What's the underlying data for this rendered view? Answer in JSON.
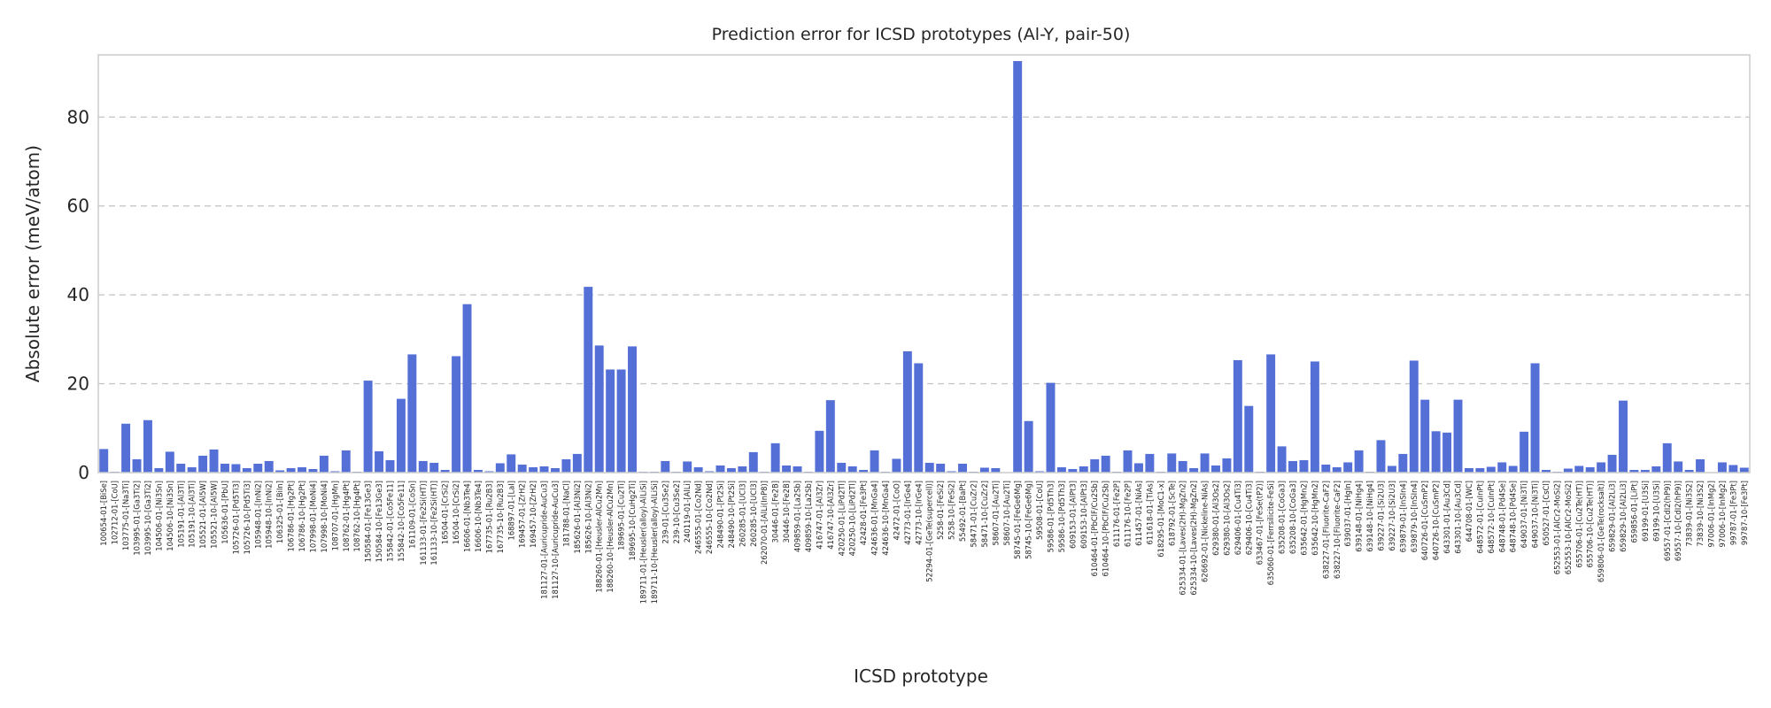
{
  "chart_data": {
    "type": "bar",
    "title": "Prediction error for ICSD prototypes (Al-Y, pair-50)",
    "xlabel": "ICSD prototype",
    "ylabel": "Absolute error (meV/atom)",
    "ylim": [
      0,
      94
    ],
    "yticks": [
      0,
      20,
      40,
      60,
      80
    ],
    "grid": "y, dashed",
    "bar_color": "#5470d6",
    "categories": [
      "100654-01-[BiSe]",
      "102712-01-[CoU]",
      "103775-01-[Na3Ti]",
      "103995-01-[Ga3Ti2]",
      "103995-10-[Ga3Ti2]",
      "104506-01-[Ni3Sn]",
      "104506-10-[Ni3Sn]",
      "105191-01-[Al3Ti]",
      "105191-10-[Al3Ti]",
      "105521-01-[Al5W]",
      "105521-10-[Al5W]",
      "105636-01-[PbU]",
      "105726-01-[Pd5Ti3]",
      "105726-10-[Pd5Ti3]",
      "105948-01-[InNi2]",
      "105948-10-[InNi2]",
      "106325-01-[BiIn]",
      "106786-01-[Hg2Pt]",
      "106786-10-[Hg2Pt]",
      "107998-01-[MoNi4]",
      "107998-10-[MoNi4]",
      "108707-01-[HgMn]",
      "108762-01-[Hg4Pt]",
      "108762-10-[Hg4Pt]",
      "150584-01-[Fe13Ge3]",
      "150584-10-[Fe13Ge3]",
      "155842-01-[Co5Fe11]",
      "155842-10-[Co5Fe11]",
      "161109-01-[CoSn]",
      "161133-01-[Fe2Si(HT)]",
      "161133-10-[Fe2Si(HT)]",
      "16504-01-[CrSi2]",
      "16504-10-[CrSi2]",
      "16606-01-[Nb3Te4]",
      "16606-10-[Nb3Te4]",
      "167735-01-[Ru2B3]",
      "167735-10-[Ru2B3]",
      "168897-01-[LaI]",
      "169457-01-[ZrH2]",
      "169457-10-[ZrH2]",
      "181127-01-[Auricupride-AuCu3]",
      "181127-10-[Auricupride-AuCu3]",
      "181788-01-[NaCl]",
      "185626-01-[Al3Ni2]",
      "185626-10-[Al3Ni2]",
      "188260-01-[Heusler-AlCu2Mn]",
      "188260-10-[Heusler-AlCu2Mn]",
      "189695-01-[Cu2Ti]",
      "189695-10-[CuHg2Ti]",
      "189711-01-[Heusler(alloy)-AlLiSi]",
      "189711-10-[Heusler(alloy)-AlLiSi]",
      "239-01-[Cu3Se2]",
      "239-10-[Cu3Se2]",
      "240119-01-[AlLi]",
      "246555-01-[Co2Nd]",
      "246555-10-[Co2Nd]",
      "248490-01-[Pt2Si]",
      "248490-10-[Pt2Si]",
      "260285-01-[UCl3]",
      "260285-10-[UCl3]",
      "262070-01-[AlLi(InP8)]",
      "30446-01-[Fe2B]",
      "30446-10-[Fe2B]",
      "409859-01-[La2Sb]",
      "409859-10-[La2Sb]",
      "416747-01-[Al3Zr]",
      "416747-10-[Al3Zr]",
      "420250-01-[LiPd2Tl]",
      "420250-10-[LiPd2Tl]",
      "42428-01-[Fe3Pt]",
      "424636-01-[MnGa4]",
      "424636-10-[MnGa4]",
      "42472-01-[CoO]",
      "42773-01-[IrGe4]",
      "42773-10-[IrGe4]",
      "52294-01-[GeTe(supercell)]",
      "5258-01-[FeSi2]",
      "5258-10-[FeSi2]",
      "55492-01-[BaPt]",
      "58471-01-[CuZr2]",
      "58471-10-[CuZr2]",
      "58607-01-[Au2Ti]",
      "58607-10-[Au2Ti]",
      "58745-01-[FeGe6Mg]",
      "58745-10-[FeGe6Mg]",
      "59508-01-[CoU]",
      "59586-01-[Pd5Th3]",
      "59586-10-[Pd5Th3]",
      "609153-01-[AlPt3]",
      "609153-10-[AlPt3]",
      "610464-01-[PbClF/Cu2Sb]",
      "610464-10-[PbClF/Cu2Sb]",
      "611176-01-[Fe2P]",
      "611176-10-[Fe2P]",
      "611457-01-[NiAs]",
      "611618-01-[TiAs]",
      "618295-01-[MoC1-x]",
      "618792-01-[ScTe]",
      "625334-01-[Laves(2H)-MgZn2]",
      "625334-10-[Laves(2H)-MgZn2]",
      "626692-01-[Nickeline-NiAs]",
      "629380-01-[Al3Os2]",
      "629380-10-[Al3Os2]",
      "629406-01-[Cu4Ti3]",
      "629406-10-[Cu4Ti3]",
      "633467-01-[FeSe(tP2)]",
      "635060-01-[Ferrsilicite-FeSi]",
      "635208-01-[CoGa3]",
      "635208-10-[CoGa3]",
      "635642-01-[HgMn2]",
      "635642-10-[HgMn2]",
      "638227-01-[Fluorite-CaF2]",
      "638227-10-[Fluorite-CaF2]",
      "639037-01-[HgIn]",
      "639148-01-[NiHg4]",
      "639148-10-[NiHg4]",
      "639227-01-[Si2U3]",
      "639227-10-[Si2U3]",
      "639879-01-[InSIn4]",
      "639879-10-[InSIn4]",
      "640726-01-[CuSmP2]",
      "640726-10-[CuSmP2]",
      "643301-01-[Au3Cd]",
      "643301-10-[Au3Cd]",
      "644708-01-[WC]",
      "648572-01-[CuInPt]",
      "648572-10-[CuInPt]",
      "648748-01-[Pd4Se]",
      "648748-10-[Pd4Se]",
      "649037-01-[Ni3Ti]",
      "649037-10-[Ni3Ti]",
      "650527-01-[CsCl]",
      "652553-01-[AlCr2-MoSi2]",
      "652553-10-[AlCr2-MoSi2]",
      "655706-01-[Cu2Te(HT)]",
      "655706-10-[Cu2Te(HT)]",
      "659806-01-[GeTe(rocksalt)]",
      "659829-01-[Al2Li3]",
      "659829-10-[Al2Li3]",
      "659856-01-[LiPt]",
      "69199-01-[U3Si]",
      "69199-10-[U3Si]",
      "69557-01-[CdI2(hP9)]",
      "69557-10-[CdI2(hP9)]",
      "73839-01-[Ni3S2]",
      "73839-10-[Ni3S2]",
      "97006-01-[InMg2]",
      "97006-10-[InMg2]",
      "99787-01-[Fe3Pt]",
      "99787-10-[Fe3Pt]"
    ],
    "values": [
      5.3,
      0.2,
      11.0,
      3.0,
      11.8,
      1.0,
      4.7,
      2.0,
      1.2,
      3.8,
      5.2,
      2.0,
      1.9,
      1.0,
      2.0,
      2.6,
      0.5,
      1.0,
      1.2,
      0.8,
      3.8,
      0.3,
      5.0,
      0.2,
      20.7,
      4.8,
      2.8,
      16.6,
      26.6,
      2.6,
      2.2,
      0.6,
      26.2,
      37.9,
      0.6,
      0.3,
      2.1,
      4.1,
      1.8,
      1.2,
      1.4,
      1.0,
      3.0,
      4.2,
      41.8,
      28.6,
      23.2,
      23.2,
      28.4,
      0.2,
      0.2,
      2.6,
      0.2,
      2.5,
      1.2,
      0.3,
      1.6,
      1.0,
      1.4,
      4.6,
      0.2,
      6.6,
      1.6,
      1.4,
      0.2,
      9.4,
      16.3,
      2.2,
      1.4,
      0.6,
      5.0,
      0.2,
      3.1,
      27.3,
      24.6,
      2.2,
      2.0,
      0.3,
      2.0,
      0.2,
      1.1,
      1.0,
      0.1,
      92.6,
      11.6,
      0.3,
      20.2,
      1.2,
      0.8,
      1.4,
      3.0,
      3.8,
      0.2,
      5.0,
      2.1,
      4.2,
      0.2,
      4.3,
      2.6,
      1.0,
      4.3,
      1.6,
      3.2,
      25.3,
      15.0,
      0.2,
      26.6,
      5.9,
      2.6,
      2.8,
      25.0,
      1.8,
      1.2,
      2.3,
      5.0,
      0.2,
      7.3,
      1.5,
      4.2,
      25.2,
      16.4,
      9.3,
      9.0,
      16.4,
      1.0,
      1.0,
      1.3,
      2.3,
      1.5,
      9.2,
      24.6,
      0.6,
      0.2,
      0.9,
      1.5,
      1.2,
      2.3,
      4.0,
      16.2,
      0.6,
      0.6,
      1.4,
      6.6,
      2.5,
      0.6,
      3.0,
      0.1,
      2.3,
      1.7,
      1.1
    ]
  }
}
